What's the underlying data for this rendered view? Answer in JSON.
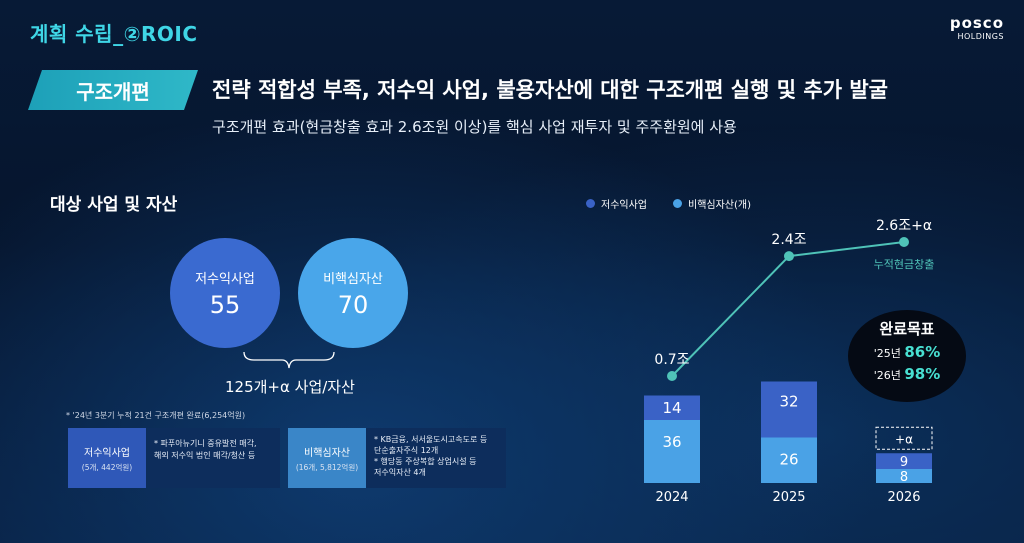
{
  "header": {
    "title": "계획 수립_②ROIC",
    "logo_top": "posco",
    "logo_bottom": "HOLDINGS"
  },
  "tag": "구조개편",
  "headline": "전략 적합성 부족, 저수익 사업, 불용자산에 대한 구조개편 실행 및 추가 발굴",
  "subheadline": "구조개편 효과(현금창출 효과 2.6조원 이상)를 핵심 사업 재투자 및 주주환원에 사용",
  "left": {
    "section_title": "대상 사업 및 자산",
    "circle1": {
      "label": "저수익사업",
      "value": "55"
    },
    "circle2": {
      "label": "비핵심자산",
      "value": "70"
    },
    "total": "125개+α 사업/자산",
    "note": "* '24년 3분기 누적 21건 구조개편 완료(6,254억원)",
    "box1": {
      "title": "저수익사업",
      "sub": "(5개, 442억원)",
      "body": "* 파푸아뉴기니 중유발전 매각,\n해외 저수익 법인 매각/청산 등"
    },
    "box2": {
      "title": "비핵심자산",
      "sub": "(16개, 5,812억원)",
      "body": "* KB금융, 서서울도시고속도로 등\n단순출자주식 12개\n* 행당동 주상복합 상업시설 등\n저수익자산 4개"
    }
  },
  "legend": {
    "a": "저수익사업",
    "b": "비핵심자산(개)"
  },
  "goal": {
    "title": "완료목표",
    "r1_label": "'25년",
    "r1_value": "86%",
    "r2_label": "'26년",
    "r2_value": "98%"
  },
  "colors": {
    "dark_bar": "#3a62c6",
    "light_bar": "#4aa2e6",
    "line": "#4fc3b8",
    "accent": "#3fd6e6"
  },
  "chart_data": {
    "type": "bar",
    "categories": [
      "2024",
      "2025",
      "2026"
    ],
    "series": [
      {
        "name": "저수익사업",
        "values": [
          14,
          32,
          9
        ]
      },
      {
        "name": "비핵심자산(개)",
        "values": [
          36,
          26,
          8
        ]
      }
    ],
    "extra_label_2026": "+α",
    "line": {
      "name": "누적현금창출",
      "labels": [
        "0.7조",
        "2.4조",
        "2.6조+α"
      ],
      "values": [
        0.7,
        2.4,
        2.6
      ]
    }
  }
}
